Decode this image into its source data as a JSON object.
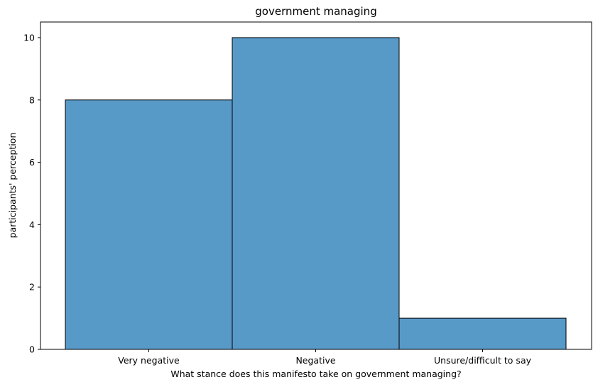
{
  "chart_data": {
    "type": "bar",
    "title": "government managing",
    "xlabel": "What stance does this manifesto take on government managing?",
    "ylabel": "participants' perception",
    "categories": [
      "Very negative",
      "Negative",
      "Unsure/difficult to say"
    ],
    "values": [
      8,
      10,
      1
    ],
    "ylim": [
      0,
      10.5
    ],
    "yticks": [
      0,
      2,
      4,
      6,
      8,
      10
    ],
    "grid": false,
    "bar_color": "#5799c7",
    "edge_color": "#000000"
  }
}
